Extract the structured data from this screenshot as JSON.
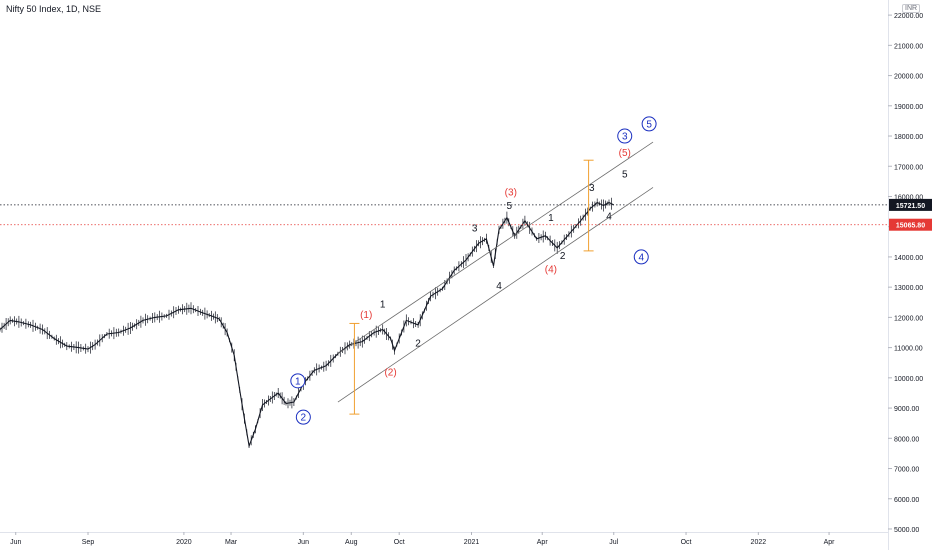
{
  "header": {
    "title": "Nifty 50 Index, 1D, NSE",
    "currency": "INR"
  },
  "chart_data": {
    "type": "line",
    "title": "Nifty 50 Index, 1D, NSE",
    "xlabel": "",
    "ylabel": "",
    "x_axis": {
      "type": "date",
      "range": [
        "2019-05-12",
        "2022-06-15"
      ],
      "ticks": [
        {
          "date": "2019-06-01",
          "label": "Jun"
        },
        {
          "date": "2019-09-01",
          "label": "Sep"
        },
        {
          "date": "2020-01-01",
          "label": "2020"
        },
        {
          "date": "2020-03-01",
          "label": "Mar"
        },
        {
          "date": "2020-06-01",
          "label": "Jun"
        },
        {
          "date": "2020-08-01",
          "label": "Aug"
        },
        {
          "date": "2020-10-01",
          "label": "Oct"
        },
        {
          "date": "2021-01-01",
          "label": "2021"
        },
        {
          "date": "2021-04-01",
          "label": "Apr"
        },
        {
          "date": "2021-07-01",
          "label": "Jul"
        },
        {
          "date": "2021-10-01",
          "label": "Oct"
        },
        {
          "date": "2022-01-01",
          "label": "2022"
        },
        {
          "date": "2022-04-01",
          "label": "Apr"
        }
      ]
    },
    "y_axis": {
      "ylim": [
        4900,
        22500
      ],
      "ticks": [
        22000,
        21000,
        20000,
        19000,
        18000,
        17000,
        16000,
        15000,
        14000,
        13000,
        12000,
        11000,
        10000,
        9000,
        8000,
        7000,
        6000,
        5000
      ],
      "tick_labels": [
        "22000.00",
        "21000.00",
        "20000.00",
        "19000.00",
        "18000.00",
        "17000.00",
        "16000.00",
        "15000.00",
        "14000.00",
        "13000.00",
        "12000.00",
        "11000.00",
        "10000.00",
        "9000.00",
        "8000.00",
        "7000.00",
        "6000.00",
        "5000.00"
      ]
    },
    "grid": false,
    "legend": "none",
    "series": [
      {
        "x": [
          "2019-05-12",
          "2019-05-25",
          "2019-06-05",
          "2019-06-20",
          "2019-07-05",
          "2019-07-20",
          "2019-08-05",
          "2019-08-20",
          "2019-09-01",
          "2019-09-10",
          "2019-09-25",
          "2019-10-10",
          "2019-10-25",
          "2019-11-10",
          "2019-11-25",
          "2019-12-10",
          "2019-12-25",
          "2020-01-10",
          "2020-01-25",
          "2020-02-05",
          "2020-02-15",
          "2020-02-25",
          "2020-03-05",
          "2020-03-12",
          "2020-03-18",
          "2020-03-24",
          "2020-04-01",
          "2020-04-10",
          "2020-04-20",
          "2020-04-30",
          "2020-05-10",
          "2020-05-20",
          "2020-06-01",
          "2020-06-15",
          "2020-06-30",
          "2020-07-15",
          "2020-07-30",
          "2020-08-15",
          "2020-08-30",
          "2020-09-10",
          "2020-09-20",
          "2020-09-25",
          "2020-10-10",
          "2020-10-25",
          "2020-11-10",
          "2020-11-25",
          "2020-12-10",
          "2020-12-25",
          "2021-01-10",
          "2021-01-20",
          "2021-01-29",
          "2021-02-05",
          "2021-02-15",
          "2021-02-25",
          "2021-03-10",
          "2021-03-25",
          "2021-04-05",
          "2021-04-20",
          "2021-05-05",
          "2021-05-20",
          "2021-06-01",
          "2021-06-10",
          "2021-06-18",
          "2021-06-25",
          "2021-07-01"
        ],
        "values": [
          11600,
          11900,
          11850,
          11750,
          11600,
          11300,
          11050,
          11000,
          10950,
          11100,
          11450,
          11500,
          11650,
          11900,
          12000,
          12050,
          12250,
          12300,
          12150,
          12050,
          11950,
          11500,
          10750,
          9600,
          8650,
          7750,
          8300,
          9100,
          9300,
          9500,
          9150,
          9200,
          9800,
          10250,
          10400,
          10800,
          11100,
          11200,
          11500,
          11600,
          11300,
          10900,
          11900,
          11750,
          12700,
          12950,
          13550,
          13900,
          14450,
          14600,
          13700,
          14900,
          15300,
          14700,
          15200,
          14600,
          14700,
          14300,
          14750,
          15200,
          15600,
          15800,
          15700,
          15800,
          15721.5
        ]
      }
    ],
    "price_lines": [
      {
        "value": 15721.5,
        "label": "15721.50",
        "color": "#131722"
      },
      {
        "value": 15065.8,
        "label": "15065.80",
        "color": "#e53935"
      }
    ],
    "channel_lines": [
      {
        "from": {
          "x": "2020-07-15",
          "y": 10800
        },
        "to": {
          "x": "2021-08-20",
          "y": 17800
        }
      },
      {
        "from": {
          "x": "2020-07-15",
          "y": 9200
        },
        "to": {
          "x": "2021-08-20",
          "y": 16300
        }
      }
    ],
    "measure_bars": [
      {
        "x": "2020-08-05",
        "low": 8800,
        "high": 11800,
        "color": "#f0a030"
      },
      {
        "x": "2021-05-30",
        "low": 14200,
        "high": 17200,
        "color": "#f0a030"
      }
    ],
    "annotations": [
      {
        "text": "1",
        "x": "2020-05-25",
        "y": 9900,
        "style": "circle",
        "color": "#1a2fc0"
      },
      {
        "text": "2",
        "x": "2020-06-01",
        "y": 8700,
        "style": "circle",
        "color": "#1a2fc0"
      },
      {
        "text": "(1)",
        "x": "2020-08-20",
        "y": 12100,
        "style": "plain",
        "color": "#e53935"
      },
      {
        "text": "(2)",
        "x": "2020-09-20",
        "y": 10200,
        "style": "plain",
        "color": "#e53935"
      },
      {
        "text": "1",
        "x": "2020-09-10",
        "y": 12450,
        "style": "plain",
        "color": "#131722"
      },
      {
        "text": "2",
        "x": "2020-10-25",
        "y": 11150,
        "style": "plain",
        "color": "#131722"
      },
      {
        "text": "3",
        "x": "2021-01-05",
        "y": 14950,
        "style": "plain",
        "color": "#131722"
      },
      {
        "text": "4",
        "x": "2021-02-05",
        "y": 13050,
        "style": "plain",
        "color": "#131722"
      },
      {
        "text": "5",
        "x": "2021-02-18",
        "y": 15700,
        "style": "plain",
        "color": "#131722"
      },
      {
        "text": "(3)",
        "x": "2021-02-20",
        "y": 16150,
        "style": "plain",
        "color": "#e53935"
      },
      {
        "text": "1",
        "x": "2021-04-12",
        "y": 15300,
        "style": "plain",
        "color": "#131722"
      },
      {
        "text": "2",
        "x": "2021-04-27",
        "y": 14050,
        "style": "plain",
        "color": "#131722"
      },
      {
        "text": "(4)",
        "x": "2021-04-12",
        "y": 13600,
        "style": "plain",
        "color": "#e53935"
      },
      {
        "text": "3",
        "x": "2021-06-03",
        "y": 16300,
        "style": "plain",
        "color": "#131722"
      },
      {
        "text": "4",
        "x": "2021-06-25",
        "y": 15350,
        "style": "plain",
        "color": "#131722"
      },
      {
        "text": "5",
        "x": "2021-07-15",
        "y": 16750,
        "style": "plain",
        "color": "#131722"
      },
      {
        "text": "(5)",
        "x": "2021-07-15",
        "y": 17450,
        "style": "plain",
        "color": "#e53935"
      },
      {
        "text": "3",
        "x": "2021-07-15",
        "y": 18000,
        "style": "circle",
        "color": "#1a2fc0"
      },
      {
        "text": "5",
        "x": "2021-08-15",
        "y": 18400,
        "style": "circle",
        "color": "#1a2fc0"
      },
      {
        "text": "4",
        "x": "2021-08-05",
        "y": 14000,
        "style": "circle",
        "color": "#1a2fc0"
      }
    ]
  }
}
